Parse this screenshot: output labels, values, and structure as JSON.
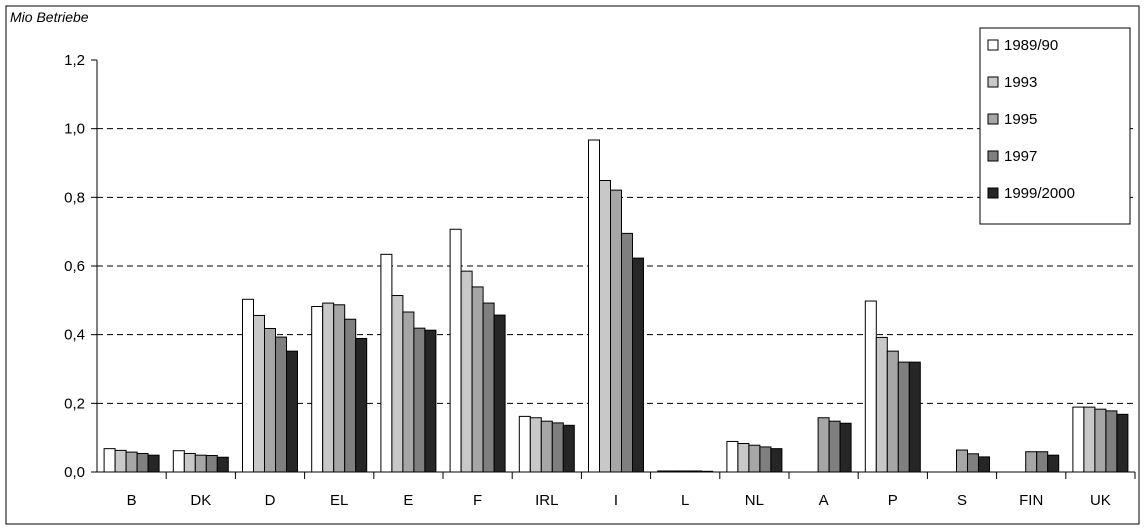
{
  "chart_data": {
    "type": "bar",
    "ylabel": "Mio Betriebe",
    "ylim": [
      0,
      1.2
    ],
    "yticks": [
      "0,0",
      "0,2",
      "0,4",
      "0,6",
      "0,8",
      "1,0",
      "1,2"
    ],
    "grid": true,
    "legend_position": "top-right",
    "categories": [
      "B",
      "DK",
      "D",
      "EL",
      "E",
      "F",
      "IRL",
      "I",
      "L",
      "NL",
      "A",
      "P",
      "S",
      "FIN",
      "UK"
    ],
    "series": [
      {
        "name": "1989/90",
        "color": "#ffffff",
        "values": [
          0.068,
          0.062,
          0.503,
          0.482,
          0.634,
          0.707,
          0.162,
          0.967,
          0.003,
          0.089,
          null,
          0.498,
          null,
          null,
          0.189
        ]
      },
      {
        "name": "1993",
        "color": "#c8c8c8",
        "values": [
          0.063,
          0.054,
          0.456,
          0.492,
          0.514,
          0.585,
          0.158,
          0.849,
          0.003,
          0.083,
          null,
          0.392,
          null,
          null,
          0.189
        ]
      },
      {
        "name": "1995",
        "color": "#a6a6a6",
        "values": [
          0.058,
          0.049,
          0.418,
          0.487,
          0.466,
          0.539,
          0.148,
          0.821,
          0.003,
          0.078,
          0.158,
          0.352,
          0.064,
          0.059,
          0.183
        ]
      },
      {
        "name": "1997",
        "color": "#7f7f7f",
        "values": [
          0.054,
          0.048,
          0.393,
          0.445,
          0.419,
          0.492,
          0.143,
          0.695,
          0.003,
          0.073,
          0.148,
          0.32,
          0.053,
          0.059,
          0.178
        ]
      },
      {
        "name": "1999/2000",
        "color": "#262626",
        "values": [
          0.049,
          0.043,
          0.352,
          0.389,
          0.413,
          0.457,
          0.136,
          0.623,
          0.002,
          0.068,
          0.142,
          0.32,
          0.044,
          0.049,
          0.168
        ]
      }
    ]
  }
}
